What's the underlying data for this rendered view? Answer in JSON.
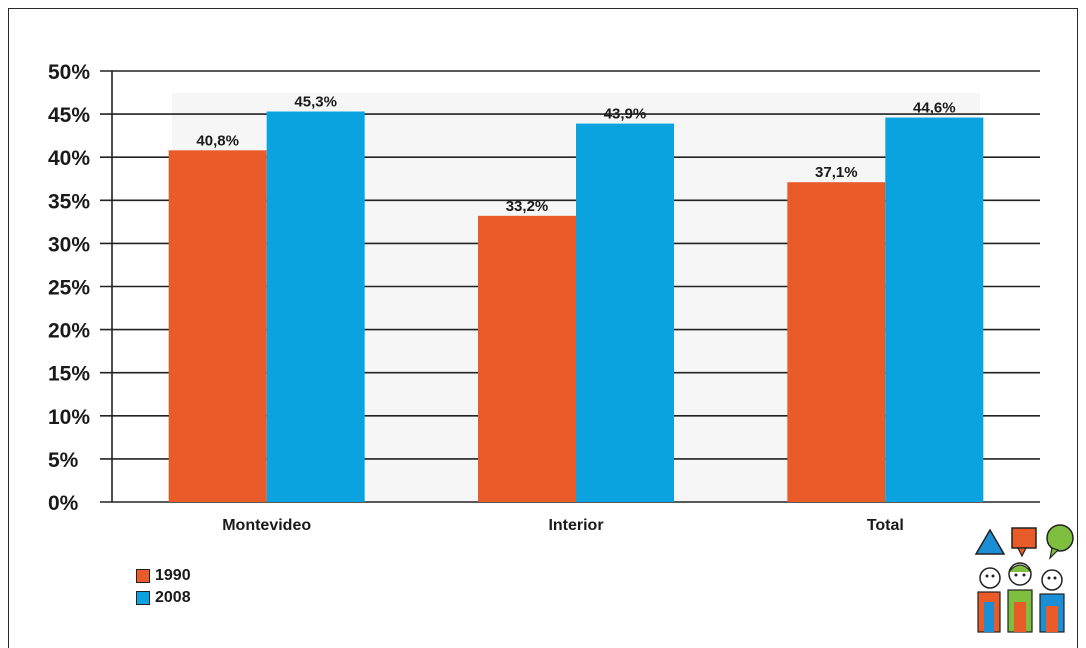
{
  "chart_data": {
    "type": "bar",
    "categories": [
      "Montevideo",
      "Interior",
      "Total"
    ],
    "series": [
      {
        "name": "1990",
        "values": [
          40.8,
          33.2,
          37.1
        ],
        "labels": [
          "40,8%",
          "33,2%",
          "37,1%"
        ],
        "color": "#ea5b2a"
      },
      {
        "name": "2008",
        "values": [
          45.3,
          43.9,
          44.6
        ],
        "labels": [
          "45,3%",
          "43,9%",
          "44,6%"
        ],
        "color": "#0aa3e0"
      }
    ],
    "yticks": [
      "0%",
      "5%",
      "10%",
      "15%",
      "20%",
      "25%",
      "30%",
      "35%",
      "40%",
      "45%",
      "50%"
    ],
    "ylim": [
      0,
      50
    ],
    "grid": true,
    "legend_position": "bottom-left",
    "title": "",
    "xlabel": "",
    "ylabel": ""
  },
  "logo_icon": "children-speech-bubbles-logo"
}
